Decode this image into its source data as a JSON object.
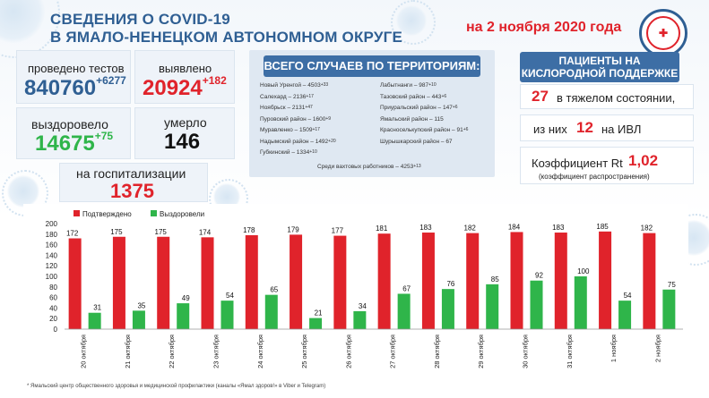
{
  "header": {
    "title_line1": "СВЕДЕНИЯ О COVID-19",
    "title_line2": "В ЯМАЛО-НЕНЕЦКОМ АВТОНОМНОМ ОКРУГЕ",
    "date": "на 2 ноября 2020 года"
  },
  "stats": {
    "tests_label": "проведено тестов",
    "tests_value": "840760",
    "tests_delta": "+6277",
    "detected_label": "выявлено",
    "detected_value": "20924",
    "detected_delta": "+182",
    "recovered_label": "выздоровело",
    "recovered_value": "14675",
    "recovered_delta": "+75",
    "died_label": "умерло",
    "died_value": "146",
    "hospital_label": "на госпитализации",
    "hospital_value": "1375"
  },
  "territories": {
    "heading": "ВСЕГО СЛУЧАЕВ ПО ТЕРРИТОРИЯМ:",
    "left": [
      {
        "name": "Новый Уренгой –",
        "value": "4503",
        "delta": "+33"
      },
      {
        "name": "Салехард –",
        "value": "2136",
        "delta": "+17"
      },
      {
        "name": "Ноябрьск –",
        "value": "2131",
        "delta": "+47"
      },
      {
        "name": "Пуровский район –",
        "value": "1600",
        "delta": "+9"
      },
      {
        "name": "Муравленко –",
        "value": "1509",
        "delta": "+17"
      },
      {
        "name": "Надымский район –",
        "value": "1492",
        "delta": "+20"
      },
      {
        "name": "Губкинский –",
        "value": "1334",
        "delta": "+10"
      }
    ],
    "right": [
      {
        "name": "Лабытнанги –",
        "value": "987",
        "delta": "+10"
      },
      {
        "name": "Тазовский район –",
        "value": "443",
        "delta": "+6"
      },
      {
        "name": "Приуральский район –",
        "value": "147",
        "delta": "+6"
      },
      {
        "name": "Ямальский район –",
        "value": "115",
        "delta": ""
      },
      {
        "name": "Красноселькупский район –",
        "value": "91",
        "delta": "+6"
      },
      {
        "name": "Шурышкарский район –",
        "value": "67",
        "delta": ""
      }
    ],
    "shift_label": "Среди вахтовых   работников –",
    "shift_value": "4253",
    "shift_delta": "+13"
  },
  "oxygen": {
    "heading_line1": "ПАЦИЕНТЫ НА",
    "heading_line2": "КИСЛОРОДНОЙ ПОДДЕРЖКЕ",
    "severe_value": "27",
    "severe_text": "в тяжелом состоянии,",
    "ivl_prefix": "из них",
    "ivl_value": "12",
    "ivl_suffix": "на   ИВЛ",
    "rt_label": "Коэффициент Rt",
    "rt_value": "1,02",
    "rt_sub": "(коэффициент распространения)"
  },
  "footer": "* Ямальский центр общественного здоровья и медицинской профилактики (каналы «Ямал здоров!» в Viber и Telegram)",
  "colors": {
    "confirmed": "#e0232b",
    "recovered": "#2fb54a",
    "accent": "#2f5f93"
  },
  "chart_data": {
    "type": "bar",
    "categories": [
      "20 октября",
      "21 октября",
      "22 октября",
      "23 октября",
      "24 октября",
      "25 октября",
      "26 октября",
      "27 октября",
      "28 октября",
      "29 октября",
      "30 октября",
      "31 октября",
      "1 ноября",
      "2 ноября"
    ],
    "series": [
      {
        "name": "Подтверждено",
        "values": [
          172,
          175,
          175,
          174,
          178,
          179,
          177,
          181,
          183,
          182,
          184,
          183,
          185,
          182
        ]
      },
      {
        "name": "Выздоровели",
        "values": [
          31,
          35,
          49,
          54,
          65,
          21,
          34,
          67,
          76,
          85,
          92,
          100,
          54,
          75
        ]
      }
    ],
    "ylim": [
      0,
      200
    ],
    "yticks": [
      0,
      20,
      40,
      60,
      80,
      100,
      120,
      140,
      160,
      180,
      200
    ],
    "legend": "top-left",
    "grid": false
  }
}
